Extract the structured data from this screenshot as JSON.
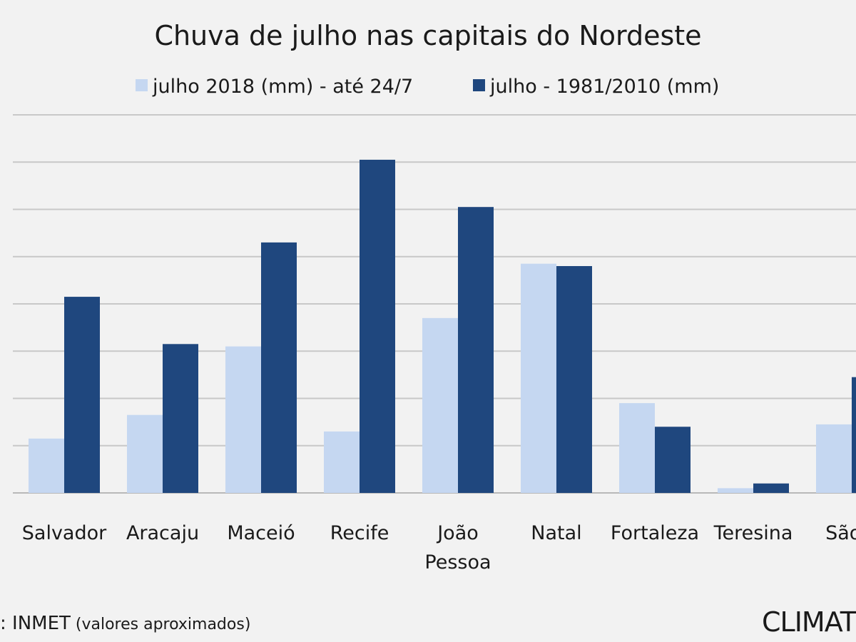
{
  "chart_data": {
    "type": "bar",
    "title": "Chuva de julho nas capitais do Nordeste",
    "categories": [
      "Salvador",
      "Aracaju",
      "Maceió",
      "Recife",
      "João Pessoa",
      "Natal",
      "Fortaleza",
      "Teresina",
      "São Luís"
    ],
    "categories_visible": [
      "Salvador",
      "Aracaju",
      "Maceió",
      "Recife",
      "João|Pessoa",
      "Natal",
      "Fortaleza",
      "Teresina",
      "São L"
    ],
    "series": [
      {
        "name": "julho 2018 (mm) - até 24/7",
        "color": "#c5d7f1",
        "values": [
          23,
          33,
          62,
          26,
          74,
          97,
          38,
          2,
          29
        ]
      },
      {
        "name": "julho - 1981/2010 (mm)",
        "color": "#1f477e",
        "values": [
          83,
          63,
          106,
          141,
          121,
          96,
          28,
          4,
          49
        ]
      }
    ],
    "ylim": [
      0,
      160
    ],
    "ytick_step": 20,
    "grid": true,
    "legend_position": "top",
    "show_y_tick_labels": false
  },
  "footer": {
    "source_prefix": ": INMET",
    "source_note": " (valores aproximados)",
    "brand": "CLIMATE"
  }
}
